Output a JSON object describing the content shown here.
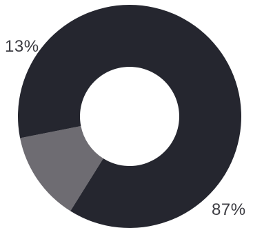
{
  "chart_data": {
    "type": "pie",
    "donut": true,
    "slices": [
      {
        "label": "13%",
        "value": 13,
        "color": "#6e6c72"
      },
      {
        "label": "87%",
        "value": 87,
        "color": "#25262f"
      }
    ],
    "title": "",
    "legend": "none"
  }
}
